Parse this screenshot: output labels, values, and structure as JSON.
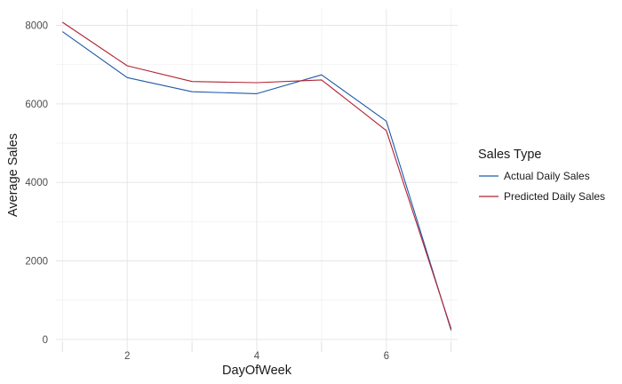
{
  "chart_data": {
    "type": "line",
    "xlabel": "DayOfWeek",
    "ylabel": "Average Sales",
    "xlim": [
      0.9,
      7.1
    ],
    "ylim": [
      -320,
      8420
    ],
    "x_ticks": [
      2,
      4,
      6
    ],
    "y_ticks": [
      0,
      2000,
      4000,
      6000,
      8000
    ],
    "x_tick_labels": [
      "2",
      "4",
      "6"
    ],
    "y_tick_labels": [
      "0",
      "2000",
      "4000",
      "6000",
      "8000"
    ],
    "grid": true,
    "x": [
      1,
      2,
      3,
      4,
      5,
      6,
      7
    ],
    "series": [
      {
        "name": "Actual Daily Sales",
        "color": "#1f5aa8",
        "values": [
          7840,
          6670,
          6310,
          6260,
          6740,
          5560,
          230
        ]
      },
      {
        "name": "Predicted Daily Sales",
        "color": "#b22232",
        "values": [
          8080,
          6970,
          6570,
          6540,
          6610,
          5320,
          270
        ]
      }
    ],
    "legend": {
      "title": "Sales Type",
      "position": "right"
    }
  }
}
